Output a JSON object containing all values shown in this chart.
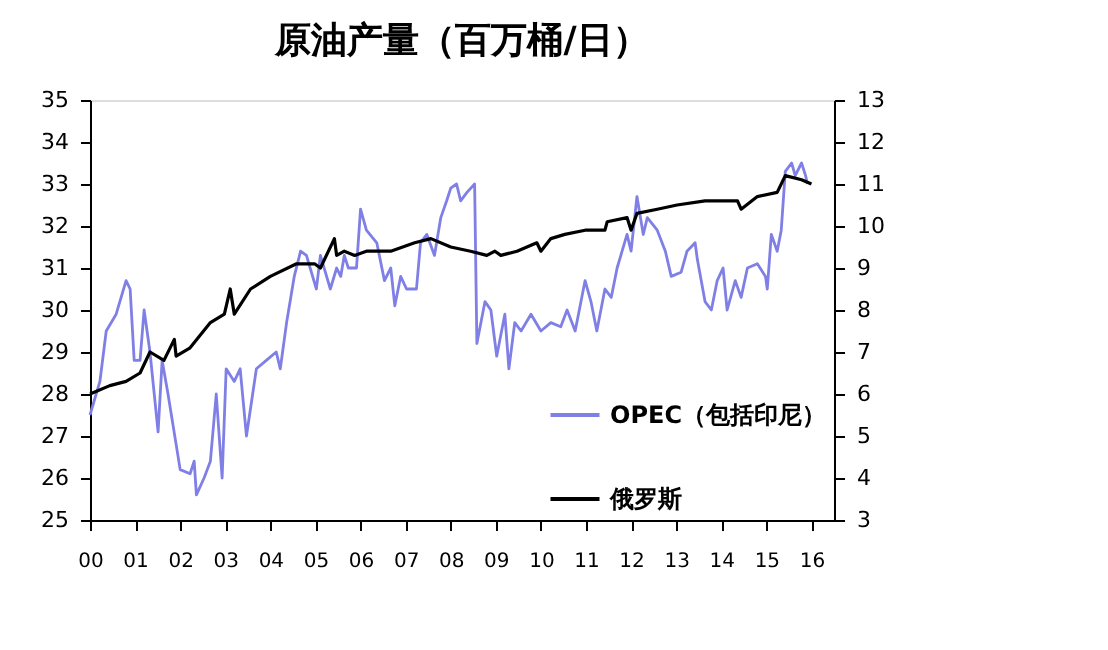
{
  "chart_data": {
    "type": "line",
    "title": "原油产量（百万桶/日）",
    "xlim": [
      2000,
      2016.5
    ],
    "xticks": [
      {
        "value": 2000,
        "label": "00"
      },
      {
        "value": 2001,
        "label": "01"
      },
      {
        "value": 2002,
        "label": "02"
      },
      {
        "value": 2003,
        "label": "03"
      },
      {
        "value": 2004,
        "label": "04"
      },
      {
        "value": 2005,
        "label": "05"
      },
      {
        "value": 2006,
        "label": "06"
      },
      {
        "value": 2007,
        "label": "07"
      },
      {
        "value": 2008,
        "label": "08"
      },
      {
        "value": 2009,
        "label": "09"
      },
      {
        "value": 2010,
        "label": "10"
      },
      {
        "value": 2011,
        "label": "11"
      },
      {
        "value": 2012,
        "label": "12"
      },
      {
        "value": 2013,
        "label": "13"
      },
      {
        "value": 2014,
        "label": "14"
      },
      {
        "value": 2015,
        "label": "15"
      },
      {
        "value": 2016,
        "label": "16"
      }
    ],
    "ylim": [
      25,
      35
    ],
    "yticks": [
      25,
      26,
      27,
      28,
      29,
      30,
      31,
      32,
      33,
      34,
      35
    ],
    "y2lim": [
      3,
      13
    ],
    "y2ticks": [
      3,
      4,
      5,
      6,
      7,
      8,
      9,
      10,
      11,
      12,
      13
    ],
    "legend": "bottom right",
    "series": [
      {
        "name": "OPEC（包括印尼）",
        "color": "#7f7fe6",
        "axis": "y",
        "x": [
          2000.0,
          2000.22,
          2000.36,
          2000.58,
          2000.8,
          2000.89,
          2000.98,
          2001.11,
          2001.2,
          2001.33,
          2001.51,
          2001.6,
          2001.73,
          2002.0,
          2002.22,
          2002.31,
          2002.36,
          2002.53,
          2002.67,
          2002.8,
          2002.93,
          2003.02,
          2003.2,
          2003.33,
          2003.47,
          2003.69,
          2003.91,
          2004.13,
          2004.22,
          2004.36,
          2004.53,
          2004.67,
          2004.8,
          2005.02,
          2005.11,
          2005.33,
          2005.47,
          2005.56,
          2005.64,
          2005.73,
          2005.91,
          2006.0,
          2006.13,
          2006.36,
          2006.53,
          2006.67,
          2006.76,
          2006.89,
          2007.02,
          2007.24,
          2007.33,
          2007.47,
          2007.64,
          2007.78,
          2007.91,
          2008.0,
          2008.13,
          2008.22,
          2008.36,
          2008.53,
          2008.58,
          2008.76,
          2008.89,
          2009.02,
          2009.2,
          2009.29,
          2009.42,
          2009.56,
          2009.78,
          2010.0,
          2010.22,
          2010.44,
          2010.58,
          2010.76,
          2010.98,
          2011.11,
          2011.24,
          2011.42,
          2011.56,
          2011.69,
          2011.91,
          2012.0,
          2012.13,
          2012.27,
          2012.36,
          2012.58,
          2012.76,
          2012.89,
          2013.11,
          2013.24,
          2013.42,
          2013.47,
          2013.64,
          2013.78,
          2013.91,
          2014.04,
          2014.13,
          2014.31,
          2014.44,
          2014.58,
          2014.8,
          2014.98,
          2015.02,
          2015.11,
          2015.24,
          2015.33,
          2015.42,
          2015.56,
          2015.64,
          2015.78,
          2015.87,
          2015.91
        ],
        "values": [
          27.5,
          28.3,
          29.5,
          29.9,
          30.7,
          30.5,
          28.8,
          28.8,
          30.0,
          29.0,
          27.1,
          28.8,
          28.0,
          26.2,
          26.1,
          26.4,
          25.6,
          26.0,
          26.4,
          28.0,
          26.0,
          28.6,
          28.3,
          28.6,
          27.0,
          28.6,
          28.8,
          29.0,
          28.6,
          29.7,
          30.8,
          31.4,
          31.3,
          30.5,
          31.3,
          30.5,
          31.0,
          30.8,
          31.3,
          31.0,
          31.0,
          32.4,
          31.9,
          31.6,
          30.7,
          31.0,
          30.1,
          30.8,
          30.5,
          30.5,
          31.6,
          31.8,
          31.3,
          32.2,
          32.6,
          32.9,
          33.0,
          32.6,
          32.8,
          33.0,
          29.2,
          30.2,
          30.0,
          28.9,
          29.9,
          28.6,
          29.7,
          29.5,
          29.9,
          29.5,
          29.7,
          29.6,
          30.0,
          29.5,
          30.7,
          30.2,
          29.5,
          30.5,
          30.3,
          31.0,
          31.8,
          31.4,
          32.7,
          31.8,
          32.2,
          31.9,
          31.4,
          30.8,
          30.9,
          31.4,
          31.6,
          31.2,
          30.2,
          30.0,
          30.7,
          31.0,
          30.0,
          30.7,
          30.3,
          31.0,
          31.1,
          30.8,
          30.5,
          31.8,
          31.4,
          31.9,
          33.3,
          33.5,
          33.2,
          33.5,
          33.2,
          33.0
        ]
      },
      {
        "name": "俄罗斯",
        "color": "#000000",
        "axis": "y2",
        "x": [
          2000.0,
          2000.44,
          2000.8,
          2001.11,
          2001.33,
          2001.64,
          2001.87,
          2001.91,
          2002.22,
          2002.67,
          2002.98,
          2003.11,
          2003.2,
          2003.56,
          2004.0,
          2004.58,
          2004.98,
          2005.11,
          2005.42,
          2005.47,
          2005.64,
          2005.87,
          2006.13,
          2006.67,
          2007.2,
          2007.56,
          2008.0,
          2008.44,
          2008.8,
          2008.98,
          2009.11,
          2009.47,
          2009.91,
          2010.0,
          2010.22,
          2010.53,
          2010.98,
          2011.42,
          2011.47,
          2011.91,
          2012.0,
          2012.13,
          2012.58,
          2013.02,
          2013.64,
          2014.09,
          2014.36,
          2014.44,
          2014.8,
          2015.24,
          2015.42,
          2015.78,
          2016.0
        ],
        "values": [
          6.0,
          6.2,
          6.3,
          6.5,
          7.0,
          6.8,
          7.3,
          6.9,
          7.1,
          7.7,
          7.9,
          8.5,
          7.9,
          8.5,
          8.8,
          9.1,
          9.1,
          9.0,
          9.7,
          9.3,
          9.4,
          9.3,
          9.4,
          9.4,
          9.6,
          9.7,
          9.5,
          9.4,
          9.3,
          9.4,
          9.3,
          9.4,
          9.6,
          9.4,
          9.7,
          9.8,
          9.9,
          9.9,
          10.1,
          10.2,
          9.9,
          10.3,
          10.4,
          10.5,
          10.6,
          10.6,
          10.6,
          10.4,
          10.7,
          10.8,
          11.2,
          11.1,
          11.0
        ]
      }
    ]
  }
}
